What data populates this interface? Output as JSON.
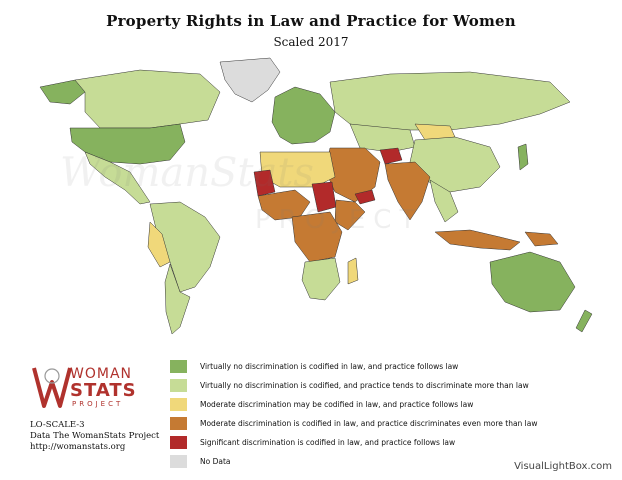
{
  "header": {
    "title": "Property Rights in Law and Practice for Women",
    "subtitle": "Scaled 2017"
  },
  "watermark": {
    "text": "WomanStats",
    "sub": "PROJECT"
  },
  "logo": {
    "line1": "WOMAN",
    "line2": "STATS",
    "line3": "PROJECT"
  },
  "meta": {
    "scale": "LO-SCALE-3",
    "source": "Data The WomanStats Project",
    "url": "http://womanstats.org"
  },
  "legend": [
    {
      "label": "Virtually no discrimination is codified in law, and practice follows law",
      "color": "#86b25e"
    },
    {
      "label": "Virtually no discrimination is codified, and practice tends to discriminate more than law",
      "color": "#c6dc96"
    },
    {
      "label": "Moderate discrimination may be codified in law, and practice follows law",
      "color": "#f0d87a"
    },
    {
      "label": "Moderate discrimination is codified in law, and practice discriminates even more than law",
      "color": "#c57a33"
    },
    {
      "label": "Significant discrimination is codified in law, and practice follows law",
      "color": "#b22a2a"
    },
    {
      "label": "No Data",
      "color": "#dcdcdc"
    }
  ],
  "credit": "VisualLightBox.com"
}
